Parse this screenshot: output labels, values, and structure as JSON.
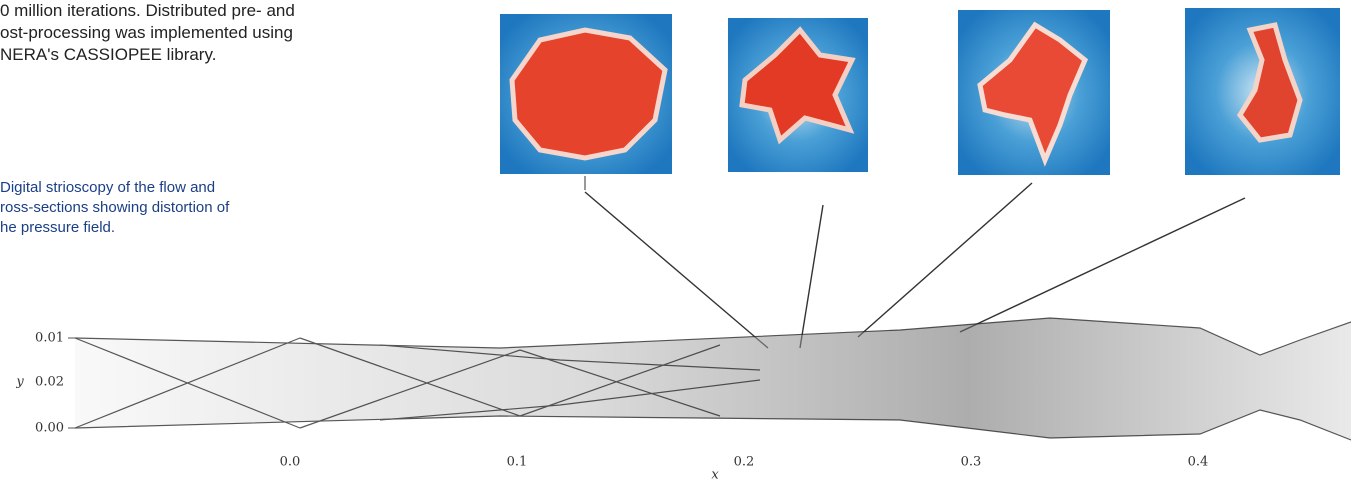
{
  "paragraph": {
    "lines": [
      "0 million iterations. Distributed pre- and",
      "ost-processing was implemented using",
      "NERA's CASSIOPEE library."
    ]
  },
  "caption": {
    "lines": [
      "Digital strioscopy of the flow and",
      "ross-sections showing distortion of",
      "he pressure field."
    ]
  },
  "figure": {
    "y_axis": {
      "label": "y",
      "ticks": [
        "0.01",
        "0.02",
        "0.00"
      ]
    },
    "x_axis": {
      "label": "x",
      "ticks": [
        "0.0",
        "0.1",
        "0.2",
        "0.3",
        "0.4"
      ]
    }
  }
}
